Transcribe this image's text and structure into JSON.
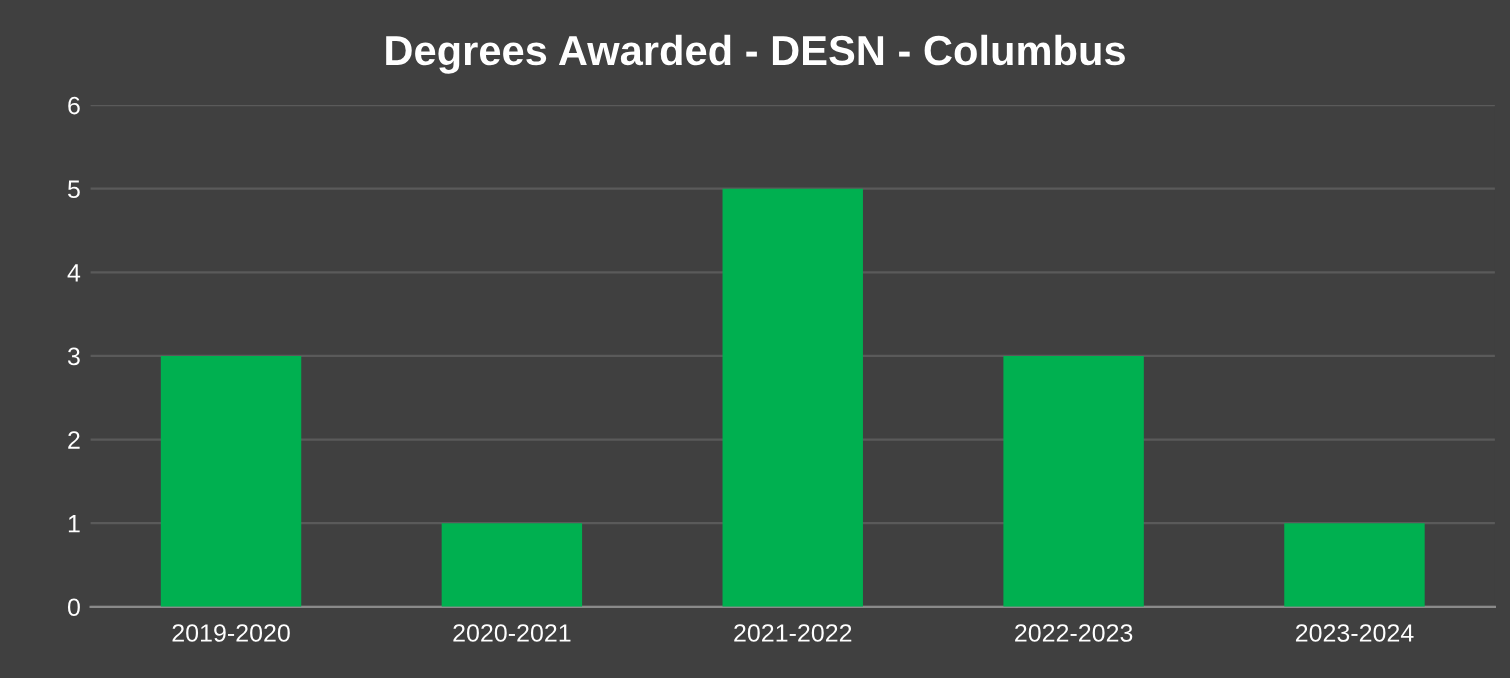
{
  "chart_data": {
    "type": "bar",
    "title": "Degrees Awarded - DESN - Columbus",
    "categories": [
      "2019-2020",
      "2020-2021",
      "2021-2022",
      "2022-2023",
      "2023-2024"
    ],
    "values": [
      3,
      1,
      5,
      3,
      1
    ],
    "color": "#00b050",
    "ylim": [
      0,
      6
    ],
    "yticks": [
      0,
      1,
      2,
      3,
      4,
      5,
      6
    ],
    "grid": "y",
    "legend": false
  }
}
